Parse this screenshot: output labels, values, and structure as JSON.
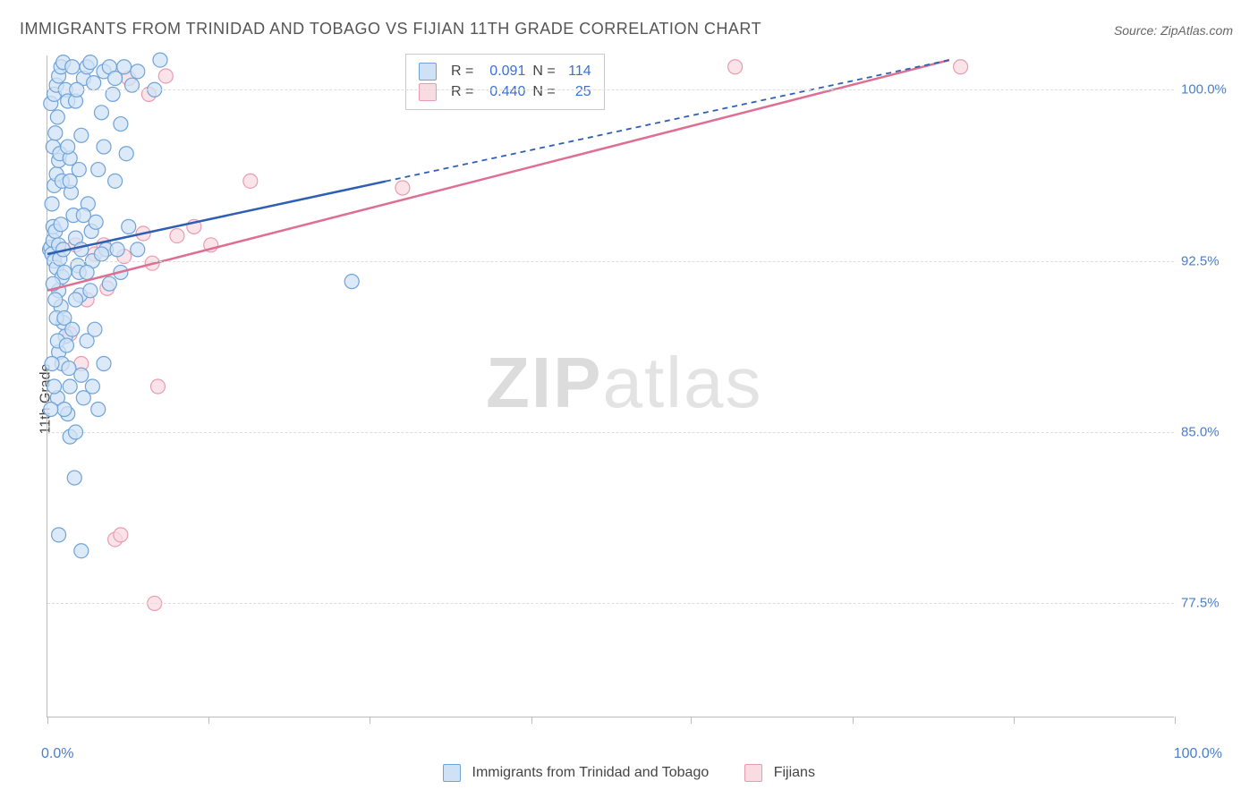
{
  "title": "IMMIGRANTS FROM TRINIDAD AND TOBAGO VS FIJIAN 11TH GRADE CORRELATION CHART",
  "source_label": "Source:",
  "source_value": "ZipAtlas.com",
  "ylabel": "11th Grade",
  "watermark_1": "ZIP",
  "watermark_2": "atlas",
  "chart": {
    "type": "scatter",
    "xlim": [
      0,
      100
    ],
    "ylim": [
      72.5,
      101.5
    ],
    "x_axis_label_min": "0.0%",
    "x_axis_label_max": "100.0%",
    "y_ticks": [
      77.5,
      85.0,
      92.5,
      100.0
    ],
    "y_tick_labels": [
      "77.5%",
      "85.0%",
      "92.5%",
      "100.0%"
    ],
    "x_tick_positions": [
      0,
      14.3,
      28.6,
      42.9,
      57.1,
      71.4,
      85.7,
      100
    ],
    "grid_color": "#dddddd",
    "background_color": "#ffffff",
    "axis_color": "#bbbbbb",
    "label_color": "#4a7ec9",
    "marker_radius": 8,
    "marker_stroke_width": 1.2,
    "series_a": {
      "name": "Immigrants from Trinidad and Tobago",
      "fill": "#cfe1f5",
      "stroke": "#6fa3d8",
      "line_color": "#2e5fb3",
      "R": "0.091",
      "N": "114",
      "trend": {
        "x1": 0,
        "y1": 92.8,
        "x2": 80,
        "y2": 101.3,
        "solid_until_x": 30
      },
      "points": [
        [
          0.2,
          93.0
        ],
        [
          0.3,
          93.1
        ],
        [
          0.4,
          92.8
        ],
        [
          0.5,
          93.4
        ],
        [
          0.6,
          92.5
        ],
        [
          0.5,
          94.0
        ],
        [
          0.7,
          93.8
        ],
        [
          0.8,
          92.2
        ],
        [
          1.0,
          93.2
        ],
        [
          1.1,
          92.6
        ],
        [
          1.2,
          94.1
        ],
        [
          1.3,
          91.8
        ],
        [
          1.4,
          93.0
        ],
        [
          1.5,
          92.0
        ],
        [
          0.4,
          95.0
        ],
        [
          0.6,
          95.8
        ],
        [
          0.8,
          96.3
        ],
        [
          1.0,
          96.9
        ],
        [
          0.5,
          97.5
        ],
        [
          0.7,
          98.1
        ],
        [
          0.9,
          98.8
        ],
        [
          1.1,
          97.2
        ],
        [
          1.3,
          96.0
        ],
        [
          0.3,
          99.4
        ],
        [
          0.6,
          99.8
        ],
        [
          0.8,
          100.2
        ],
        [
          1.0,
          100.6
        ],
        [
          1.2,
          101.0
        ],
        [
          1.4,
          101.2
        ],
        [
          1.6,
          100.0
        ],
        [
          1.8,
          99.5
        ],
        [
          2.0,
          97.0
        ],
        [
          2.1,
          95.5
        ],
        [
          2.3,
          94.5
        ],
        [
          2.5,
          93.5
        ],
        [
          2.7,
          92.3
        ],
        [
          2.9,
          91.0
        ],
        [
          1.0,
          91.2
        ],
        [
          1.2,
          90.5
        ],
        [
          1.4,
          89.8
        ],
        [
          1.6,
          89.2
        ],
        [
          1.0,
          88.5
        ],
        [
          1.3,
          88.0
        ],
        [
          0.8,
          90.0
        ],
        [
          0.9,
          89.0
        ],
        [
          0.5,
          91.5
        ],
        [
          0.7,
          90.8
        ],
        [
          1.5,
          90.0
        ],
        [
          1.7,
          88.8
        ],
        [
          1.9,
          87.8
        ],
        [
          2.2,
          89.5
        ],
        [
          2.5,
          90.8
        ],
        [
          2.8,
          92.0
        ],
        [
          3.0,
          93.0
        ],
        [
          3.0,
          98.0
        ],
        [
          3.2,
          100.5
        ],
        [
          3.5,
          101.0
        ],
        [
          3.6,
          95.0
        ],
        [
          3.9,
          93.8
        ],
        [
          3.8,
          101.2
        ],
        [
          4.1,
          100.3
        ],
        [
          4.0,
          92.5
        ],
        [
          4.3,
          94.2
        ],
        [
          4.5,
          96.5
        ],
        [
          4.8,
          99.0
        ],
        [
          5.0,
          97.5
        ],
        [
          5.2,
          93.0
        ],
        [
          5.0,
          100.8
        ],
        [
          5.5,
          101.0
        ],
        [
          5.8,
          99.8
        ],
        [
          6.0,
          96.0
        ],
        [
          6.2,
          93.0
        ],
        [
          6.5,
          98.5
        ],
        [
          6.8,
          101.0
        ],
        [
          7.0,
          97.2
        ],
        [
          7.2,
          94.0
        ],
        [
          7.5,
          100.2
        ],
        [
          8.0,
          100.8
        ],
        [
          8.0,
          93.0
        ],
        [
          1.8,
          85.8
        ],
        [
          2.0,
          84.8
        ],
        [
          2.4,
          83.0
        ],
        [
          3.0,
          87.5
        ],
        [
          3.2,
          86.5
        ],
        [
          3.8,
          91.2
        ],
        [
          3.5,
          89.0
        ],
        [
          4.0,
          87.0
        ],
        [
          4.5,
          86.0
        ],
        [
          1.0,
          80.5
        ],
        [
          2.5,
          99.5
        ],
        [
          2.8,
          96.5
        ],
        [
          3.2,
          94.5
        ],
        [
          3.5,
          92.0
        ],
        [
          4.8,
          92.8
        ],
        [
          5.5,
          91.5
        ],
        [
          6.5,
          92.0
        ],
        [
          5.0,
          88.0
        ],
        [
          4.2,
          89.5
        ],
        [
          6.0,
          100.5
        ],
        [
          9.5,
          100.0
        ],
        [
          10.0,
          101.3
        ],
        [
          2.2,
          101.0
        ],
        [
          2.6,
          100.0
        ],
        [
          0.9,
          86.5
        ],
        [
          1.5,
          86.0
        ],
        [
          2.0,
          87.0
        ],
        [
          2.5,
          85.0
        ],
        [
          1.8,
          97.5
        ],
        [
          2.0,
          96.0
        ],
        [
          0.4,
          88.0
        ],
        [
          0.6,
          87.0
        ],
        [
          0.3,
          86.0
        ],
        [
          3.0,
          79.8
        ],
        [
          27.0,
          91.6
        ]
      ]
    },
    "series_b": {
      "name": "Fijians",
      "fill": "#f9dbe2",
      "stroke": "#e89cb1",
      "line_color": "#de6f92",
      "R": "0.440",
      "N": "25",
      "trend": {
        "x1": 0,
        "y1": 91.2,
        "x2": 80,
        "y2": 101.3
      },
      "points": [
        [
          1.0,
          93.0
        ],
        [
          2.5,
          93.2
        ],
        [
          3.5,
          90.8
        ],
        [
          4.2,
          92.8
        ],
        [
          5.0,
          93.2
        ],
        [
          5.3,
          91.3
        ],
        [
          6.8,
          92.7
        ],
        [
          7.2,
          100.5
        ],
        [
          8.5,
          93.7
        ],
        [
          9.0,
          99.8
        ],
        [
          9.3,
          92.4
        ],
        [
          10.5,
          100.6
        ],
        [
          11.5,
          93.6
        ],
        [
          13.0,
          94.0
        ],
        [
          18.0,
          96.0
        ],
        [
          6.0,
          80.3
        ],
        [
          6.5,
          80.5
        ],
        [
          9.5,
          77.5
        ],
        [
          31.5,
          95.7
        ],
        [
          2.0,
          89.3
        ],
        [
          3.0,
          88.0
        ],
        [
          9.8,
          87.0
        ],
        [
          61.0,
          101.0
        ],
        [
          81.0,
          101.0
        ],
        [
          14.5,
          93.2
        ]
      ]
    }
  },
  "legend": {
    "R_label": "R  =",
    "N_label": "N  ="
  }
}
